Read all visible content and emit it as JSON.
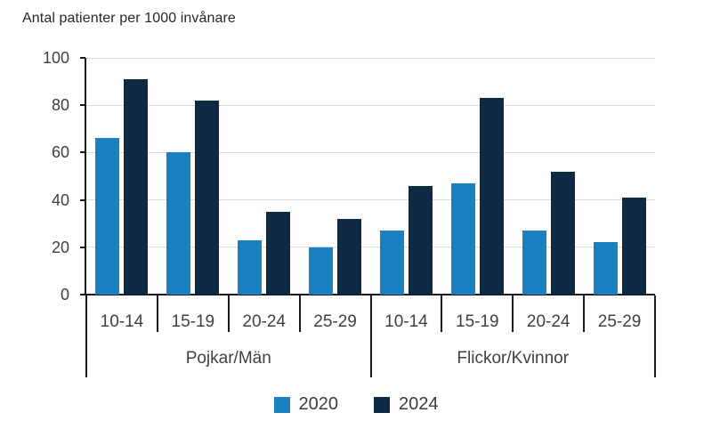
{
  "chart_data": {
    "type": "bar",
    "title": "Antal patienter per 1000 invånare",
    "ylabel": "Antal patienter per 1000 invånare",
    "ylim": [
      0,
      100
    ],
    "yticks": [
      0,
      20,
      40,
      60,
      80,
      100
    ],
    "grid": "horizontal",
    "legend_position": "bottom",
    "groups": [
      {
        "label": "Pojkar/Män",
        "categories": [
          "10-14",
          "15-19",
          "20-24",
          "25-29"
        ]
      },
      {
        "label": "Flickor/Kvinnor",
        "categories": [
          "10-14",
          "15-19",
          "20-24",
          "25-29"
        ]
      }
    ],
    "series": [
      {
        "name": "2020",
        "color": "#1b7fc4",
        "values": [
          [
            66,
            60,
            23,
            20
          ],
          [
            27,
            47,
            27,
            22
          ]
        ]
      },
      {
        "name": "2024",
        "color": "#0e2a43",
        "values": [
          [
            91,
            82,
            35,
            32
          ],
          [
            46,
            83,
            52,
            41
          ]
        ]
      }
    ],
    "colors": {
      "grid": "#dcdcdc",
      "axis": "#1a1a1a",
      "text": "#404040",
      "title_text": "#262626"
    }
  }
}
